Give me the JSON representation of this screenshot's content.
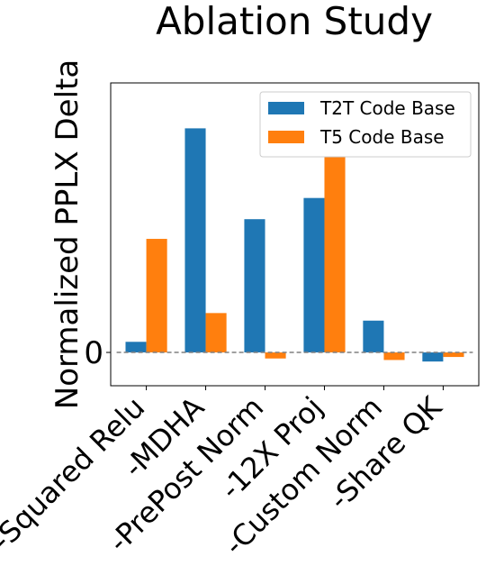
{
  "chart_data": {
    "type": "bar",
    "title": "Ablation Study",
    "xlabel": "",
    "ylabel": "Normalized PPLX Delta",
    "categories": [
      "-Squared Relu",
      "-MDHA",
      "-PrePost Norm",
      "-12X Proj",
      "-Custom Norm",
      "-Share QK"
    ],
    "series": [
      {
        "name": "T2T Code Base",
        "color": "#1f77b4",
        "values": [
          0.035,
          0.74,
          0.44,
          0.51,
          0.105,
          -0.03
        ]
      },
      {
        "name": "T5 Code Base",
        "color": "#ff7f0e",
        "values": [
          0.375,
          0.13,
          -0.02,
          0.65,
          -0.025,
          -0.015
        ]
      }
    ],
    "ylim": [
      -0.11,
      0.89
    ],
    "yticks": [
      {
        "value": 0,
        "label": "0"
      }
    ],
    "zero_line": {
      "style": "dashed",
      "color": "#808080"
    },
    "grid": false,
    "legend": {
      "position": "top-right"
    }
  }
}
